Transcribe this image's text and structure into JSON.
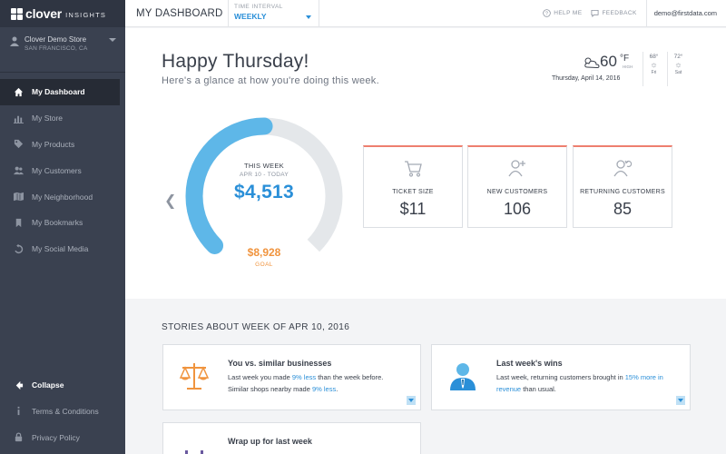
{
  "brand": {
    "name": "clover",
    "suffix": "INSIGHTS"
  },
  "store": {
    "name": "Clover Demo Store",
    "location": "SAN FRANCISCO, CA"
  },
  "nav": [
    {
      "label": "My Dashboard",
      "icon": "home-icon",
      "active": true
    },
    {
      "label": "My Store",
      "icon": "bar-chart-icon"
    },
    {
      "label": "My Products",
      "icon": "tag-icon"
    },
    {
      "label": "My Customers",
      "icon": "people-icon"
    },
    {
      "label": "My Neighborhood",
      "icon": "map-icon"
    },
    {
      "label": "My Bookmarks",
      "icon": "bookmark-icon"
    },
    {
      "label": "My Social Media",
      "icon": "share-icon"
    }
  ],
  "sidebar_bottom": {
    "collapse": "Collapse",
    "terms": "Terms & Conditions",
    "privacy": "Privacy Policy"
  },
  "topbar": {
    "title": "MY DASHBOARD",
    "interval_label": "TIME INTERVAL",
    "interval_value": "WEEKLY",
    "help": "HELP ME",
    "feedback": "FEEDBACK",
    "email": "demo@firstdata.com"
  },
  "greeting": {
    "title": "Happy Thursday!",
    "subtitle": "Here's a glance at how you're doing this week."
  },
  "weather": {
    "temp": "60",
    "unit": "°F",
    "high_label": "HIGH",
    "date": "Thursday, April 14, 2016",
    "forecast": [
      {
        "temp": "68°",
        "day": "Fri"
      },
      {
        "temp": "72°",
        "day": "Sat"
      }
    ]
  },
  "gauge": {
    "label": "THIS WEEK",
    "range": "APR 10 - TODAY",
    "amount": "$4,513",
    "goal_value": "$8,928",
    "goal_label": "GOAL",
    "progress_fraction": 0.5
  },
  "stats": [
    {
      "label": "TICKET SIZE",
      "value": "$11",
      "icon": "cart-icon"
    },
    {
      "label": "NEW CUSTOMERS",
      "value": "106",
      "icon": "add-user-icon"
    },
    {
      "label": "RETURNING CUSTOMERS",
      "value": "85",
      "icon": "returning-user-icon"
    }
  ],
  "stories": {
    "title": "STORIES ABOUT WEEK OF APR 10, 2016",
    "cards": [
      {
        "title": "You vs. similar businesses",
        "text1": "Last week you made ",
        "hl1": "9% less",
        "text2": " than the week before. Similar shops nearby made ",
        "hl2": "9% less",
        "text3": "."
      },
      {
        "title": "Last week's wins",
        "text1": "Last week, returning customers brought in ",
        "hl1": "15% more in revenue",
        "text2": " than usual."
      },
      {
        "title": "Wrap up for last week"
      }
    ]
  },
  "colors": {
    "accent": "#2a8fd8",
    "goal": "#f0943e",
    "stat_border": "#ee7f6f",
    "sidebar": "#3a4150"
  }
}
